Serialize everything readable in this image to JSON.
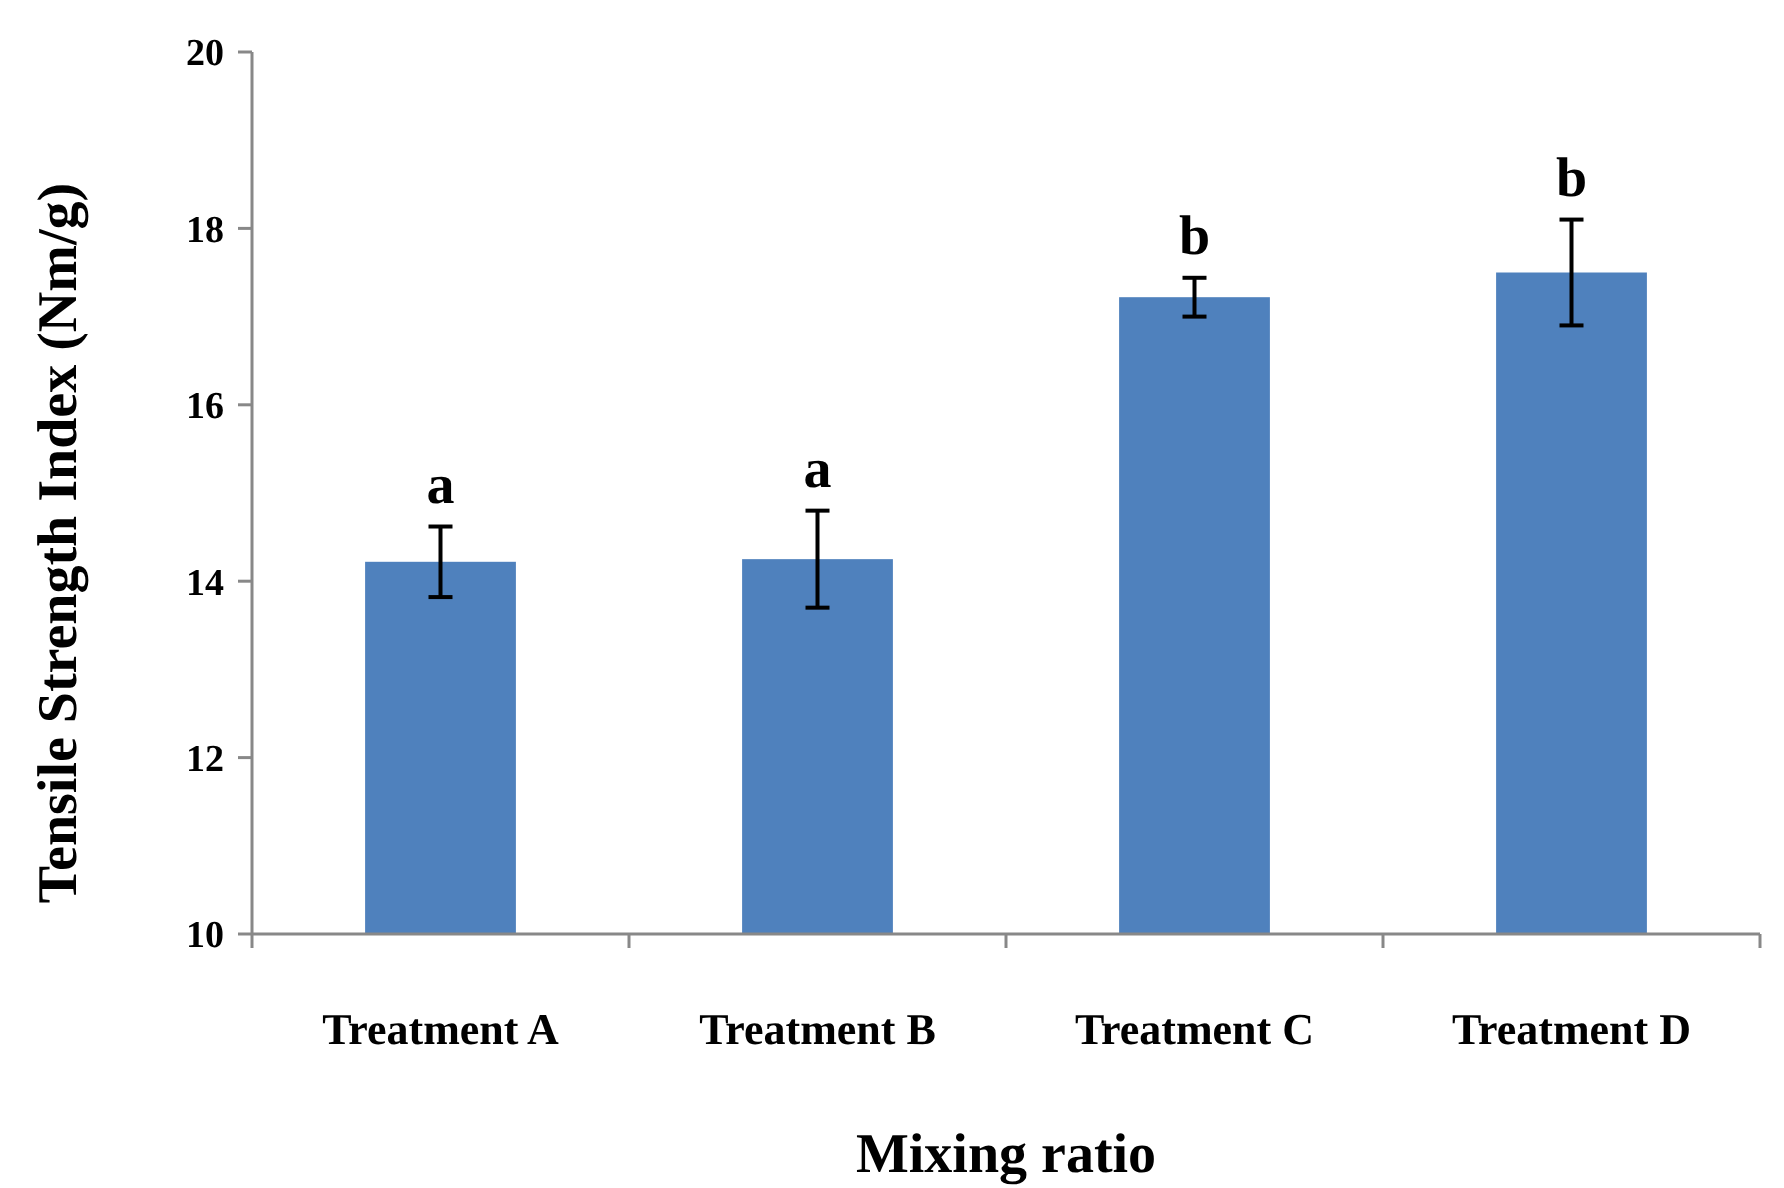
{
  "chart_data": {
    "type": "bar",
    "xlabel": "Mixing ratio",
    "ylabel": "Tensile Strength Index (Nm/g)",
    "categories": [
      "Treatment A",
      "Treatment B",
      "Treatment C",
      "Treatment D"
    ],
    "values": [
      14.22,
      14.25,
      17.22,
      17.5
    ],
    "errors": [
      0.4,
      0.55,
      0.22,
      0.6
    ],
    "color": "#4f81bd",
    "ylim": [
      10,
      20
    ],
    "yticks": [
      10,
      12,
      14,
      16,
      18,
      20
    ],
    "grid": false,
    "annotations": [
      "a",
      "a",
      "b",
      "b"
    ]
  }
}
